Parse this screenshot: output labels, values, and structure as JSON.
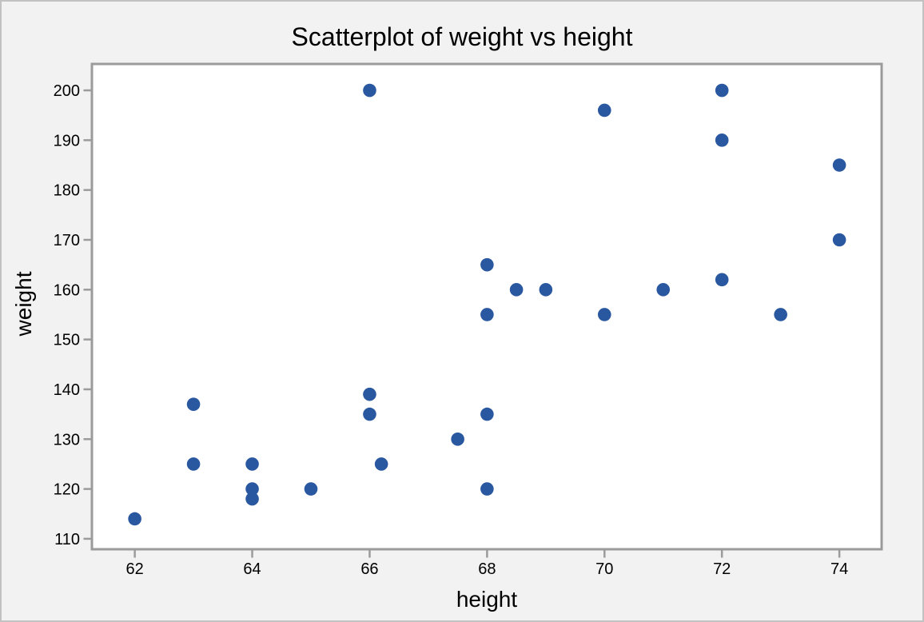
{
  "figure": {
    "background_color": "#f2f2f2",
    "plot_background_color": "#ffffff",
    "frame_color": "#9b9b9b",
    "tick_color": "#9b9b9b",
    "point_color": "#2a58a0",
    "outer_border_color": "#c2c2c2",
    "text_color": "#000000"
  },
  "chart_data": {
    "type": "scatter",
    "title": "Scatterplot of weight vs height",
    "xlabel": "height",
    "ylabel": "weight",
    "xlim": [
      61.27,
      74.72
    ],
    "ylim": [
      107.9,
      205.3
    ],
    "x_ticks": [
      62,
      64,
      66,
      68,
      70,
      72,
      74
    ],
    "y_ticks": [
      110,
      120,
      130,
      140,
      150,
      160,
      170,
      180,
      190,
      200
    ],
    "grid": false,
    "legend_position": "none",
    "marker": "filled-circle",
    "points": [
      [
        62,
        114
      ],
      [
        63,
        125
      ],
      [
        63,
        137
      ],
      [
        64,
        118
      ],
      [
        64,
        120
      ],
      [
        64,
        125
      ],
      [
        65,
        120
      ],
      [
        66,
        135
      ],
      [
        66,
        139
      ],
      [
        66,
        200
      ],
      [
        66.2,
        125
      ],
      [
        67.5,
        130
      ],
      [
        68,
        120
      ],
      [
        68,
        135
      ],
      [
        68,
        155
      ],
      [
        68,
        165
      ],
      [
        68.5,
        160
      ],
      [
        69,
        160
      ],
      [
        70,
        155
      ],
      [
        70,
        196
      ],
      [
        71,
        160
      ],
      [
        72,
        162
      ],
      [
        72,
        190
      ],
      [
        72,
        200
      ],
      [
        73,
        155
      ],
      [
        74,
        170
      ],
      [
        74,
        185
      ]
    ]
  }
}
